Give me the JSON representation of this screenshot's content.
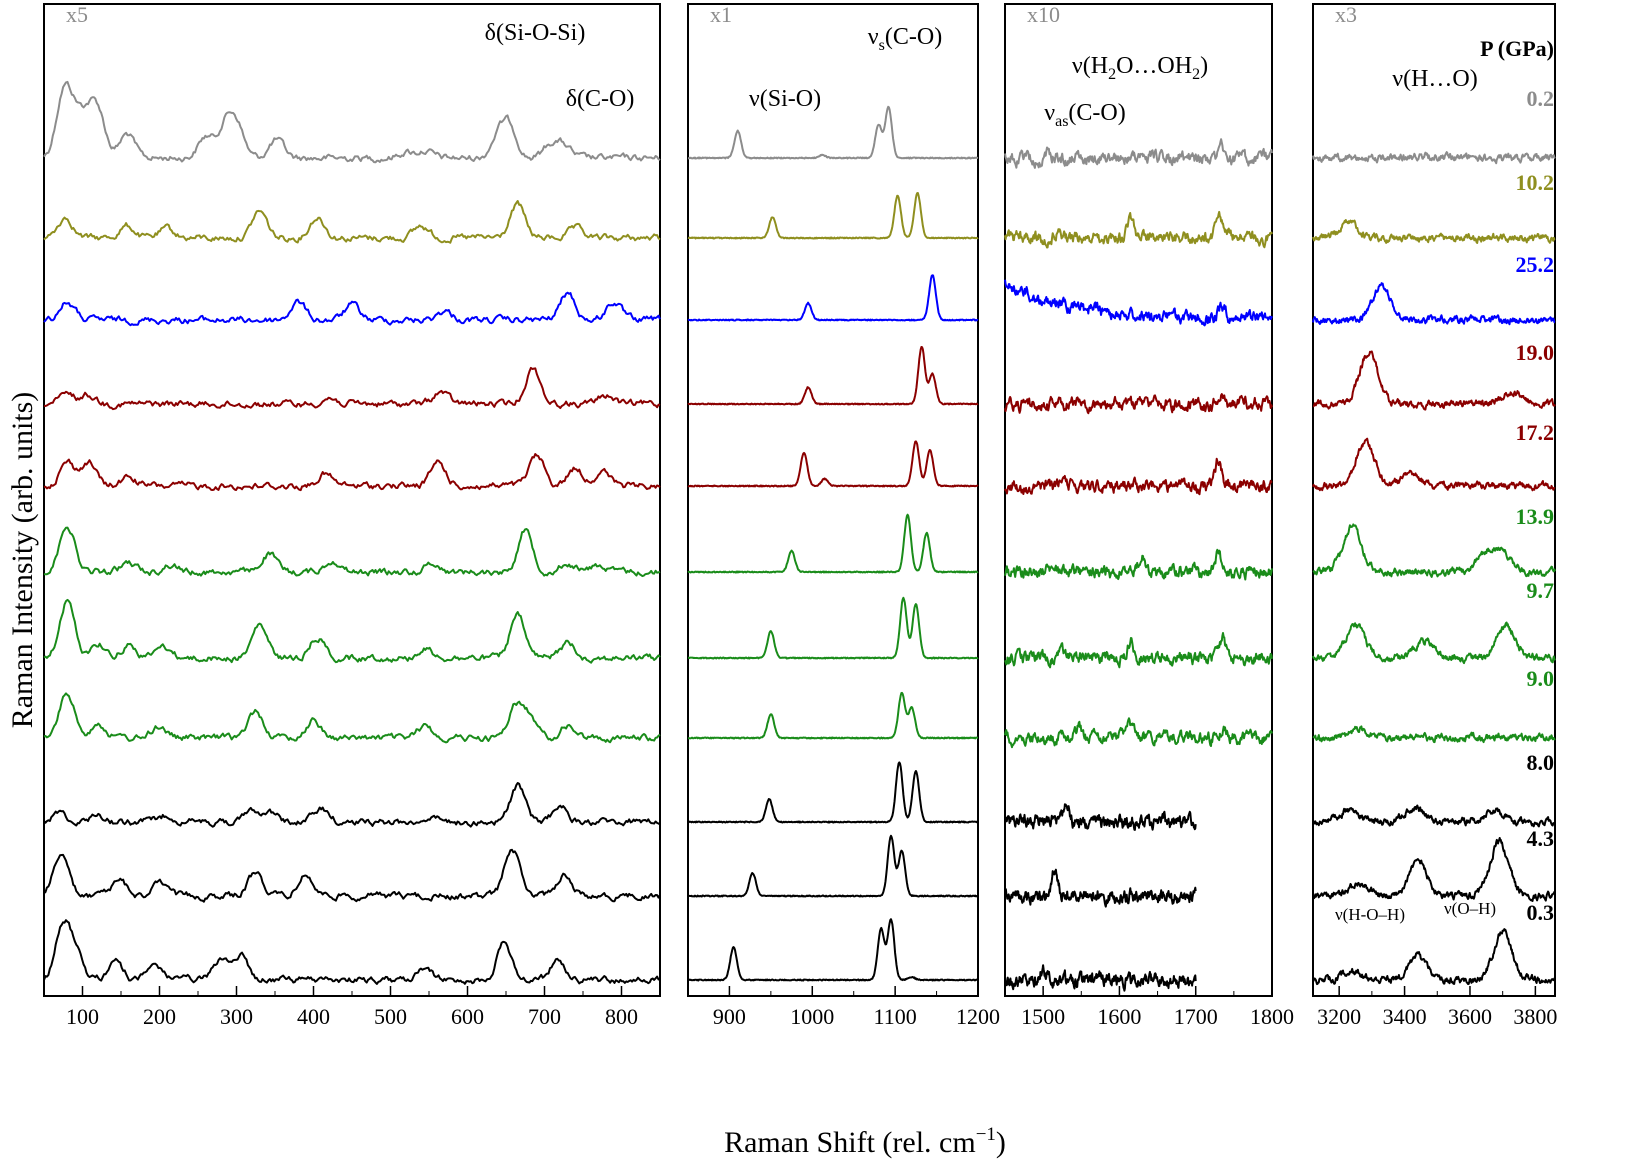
{
  "figure": {
    "xlabel": "Raman Shift (rel. cm",
    "xlabel_sup": "−1",
    "xlabel_end": ")",
    "ylabel": "Raman Intensity (arb. units)",
    "legend_title": "P (GPa)"
  },
  "chart_data": {
    "type": "line",
    "title": "",
    "xlabel": "Raman Shift (rel. cm−1)",
    "ylabel": "Raman Intensity (arb. units)",
    "grid": false,
    "legend_title": "P (GPa)",
    "legend_placement": "right",
    "pressures_order_top_to_bottom": [
      "0.2",
      "10.2",
      "25.2",
      "19.0",
      "17.2",
      "13.9",
      "9.7",
      "9.0",
      "8.0",
      "4.3",
      "0.3"
    ],
    "series": [
      {
        "name": "0.2",
        "color": "#8c8c8c"
      },
      {
        "name": "10.2",
        "color": "#8f8f1f"
      },
      {
        "name": "25.2",
        "color": "#0000ff"
      },
      {
        "name": "19.0",
        "color": "#8b0000"
      },
      {
        "name": "17.2",
        "color": "#8b0000"
      },
      {
        "name": "13.9",
        "color": "#1a8c1a"
      },
      {
        "name": "9.7",
        "color": "#1a8c1a"
      },
      {
        "name": "9.0",
        "color": "#1a8c1a"
      },
      {
        "name": "8.0",
        "color": "#000000"
      },
      {
        "name": "4.3",
        "color": "#000000"
      },
      {
        "name": "0.3",
        "color": "#000000"
      }
    ],
    "panels": [
      {
        "id": "p1",
        "scale_label": "x5",
        "xlim": [
          50,
          850
        ],
        "xticks": [
          100,
          200,
          300,
          400,
          500,
          600,
          700,
          800
        ],
        "annotations": [
          {
            "text": "δ(Si-O-Si)",
            "x": 535
          },
          {
            "text": "δ(C-O)",
            "x": 735
          }
        ],
        "series_peaks": [
          [
            [
              75,
              1.0
            ],
            [
              88,
              0.45
            ],
            [
              100,
              0.4
            ],
            [
              112,
              0.45
            ],
            [
              122,
              0.55
            ],
            [
              158,
              0.4
            ],
            [
              260,
              0.35
            ],
            [
              285,
              0.5
            ],
            [
              300,
              0.55
            ],
            [
              352,
              0.3
            ],
            [
              520,
              0.1
            ],
            [
              545,
              0.12
            ],
            [
              640,
              0.35
            ],
            [
              655,
              0.5
            ],
            [
              708,
              0.22
            ],
            [
              725,
              0.2
            ]
          ],
          [
            [
              78,
              0.35
            ],
            [
              158,
              0.2
            ],
            [
              210,
              0.15
            ],
            [
              330,
              0.45
            ],
            [
              405,
              0.35
            ],
            [
              540,
              0.2
            ],
            [
              665,
              0.55
            ],
            [
              740,
              0.15
            ]
          ],
          [
            [
              80,
              0.3
            ],
            [
              380,
              0.3
            ],
            [
              450,
              0.25
            ],
            [
              570,
              0.15
            ],
            [
              730,
              0.45
            ],
            [
              790,
              0.3
            ]
          ],
          [
            [
              80,
              0.15
            ],
            [
              108,
              0.15
            ],
            [
              420,
              0.1
            ],
            [
              565,
              0.2
            ],
            [
              685,
              0.6
            ],
            [
              780,
              0.15
            ]
          ],
          [
            [
              80,
              0.4
            ],
            [
              108,
              0.4
            ],
            [
              160,
              0.15
            ],
            [
              415,
              0.2
            ],
            [
              562,
              0.4
            ],
            [
              690,
              0.5
            ],
            [
              740,
              0.3
            ],
            [
              775,
              0.25
            ]
          ],
          [
            [
              80,
              0.8
            ],
            [
              160,
              0.15
            ],
            [
              215,
              0.12
            ],
            [
              342,
              0.3
            ],
            [
              425,
              0.2
            ],
            [
              555,
              0.15
            ],
            [
              675,
              0.7
            ],
            [
              730,
              0.15
            ],
            [
              770,
              0.12
            ]
          ],
          [
            [
              80,
              0.95
            ],
            [
              120,
              0.25
            ],
            [
              160,
              0.22
            ],
            [
              205,
              0.2
            ],
            [
              330,
              0.55
            ],
            [
              405,
              0.35
            ],
            [
              545,
              0.15
            ],
            [
              665,
              0.7
            ],
            [
              730,
              0.25
            ]
          ],
          [
            [
              80,
              0.75
            ],
            [
              120,
              0.25
            ],
            [
              200,
              0.2
            ],
            [
              325,
              0.45
            ],
            [
              400,
              0.3
            ],
            [
              545,
              0.2
            ],
            [
              662,
              0.5
            ],
            [
              680,
              0.35
            ],
            [
              730,
              0.2
            ]
          ],
          [
            [
              70,
              0.15
            ],
            [
              120,
              0.12
            ],
            [
              210,
              0.12
            ],
            [
              322,
              0.2
            ],
            [
              345,
              0.15
            ],
            [
              410,
              0.22
            ],
            [
              550,
              0.08
            ],
            [
              665,
              0.6
            ],
            [
              720,
              0.25
            ]
          ],
          [
            [
              72,
              0.7
            ],
            [
              148,
              0.25
            ],
            [
              200,
              0.2
            ],
            [
              325,
              0.4
            ],
            [
              390,
              0.35
            ],
            [
              658,
              0.8
            ],
            [
              725,
              0.35
            ]
          ],
          [
            [
              75,
              0.9
            ],
            [
              92,
              0.4
            ],
            [
              142,
              0.3
            ],
            [
              195,
              0.25
            ],
            [
              280,
              0.35
            ],
            [
              305,
              0.4
            ],
            [
              545,
              0.18
            ],
            [
              648,
              0.6
            ],
            [
              718,
              0.35
            ]
          ]
        ]
      },
      {
        "id": "p2",
        "scale_label": "x1",
        "xlim": [
          850,
          1200
        ],
        "xticks": [
          900,
          1000,
          1100,
          1200
        ],
        "annotations": [
          {
            "text": "ν(Si-O)",
            "x": 965
          },
          {
            "text": "ν",
            "sub": "s",
            "rest": "(C-O)",
            "x": 1112
          }
        ],
        "series_peaks": [
          [
            [
              910,
              0.45
            ],
            [
              1012,
              0.05
            ],
            [
              1080,
              0.55
            ],
            [
              1092,
              0.85
            ]
          ],
          [
            [
              952,
              0.35
            ],
            [
              1103,
              0.7
            ],
            [
              1127,
              0.75
            ]
          ],
          [
            [
              995,
              0.28
            ],
            [
              1145,
              0.75
            ]
          ],
          [
            [
              995,
              0.28
            ],
            [
              1132,
              0.95
            ],
            [
              1145,
              0.5
            ]
          ],
          [
            [
              990,
              0.55
            ],
            [
              1015,
              0.12
            ],
            [
              1125,
              0.75
            ],
            [
              1142,
              0.6
            ]
          ],
          [
            [
              975,
              0.35
            ],
            [
              1115,
              0.95
            ],
            [
              1138,
              0.65
            ]
          ],
          [
            [
              950,
              0.45
            ],
            [
              1110,
              1.0
            ],
            [
              1125,
              0.9
            ]
          ],
          [
            [
              950,
              0.4
            ],
            [
              1108,
              0.75
            ],
            [
              1120,
              0.5
            ]
          ],
          [
            [
              948,
              0.38
            ],
            [
              1105,
              1.0
            ],
            [
              1125,
              0.85
            ]
          ],
          [
            [
              928,
              0.38
            ],
            [
              1095,
              1.0
            ],
            [
              1108,
              0.75
            ]
          ],
          [
            [
              905,
              0.55
            ],
            [
              1083,
              0.85
            ],
            [
              1095,
              1.0
            ],
            [
              1120,
              0.05
            ]
          ]
        ]
      },
      {
        "id": "p3",
        "scale_label": "x10",
        "xlim": [
          1450,
          1800
        ],
        "xticks": [
          1500,
          1600,
          1700,
          1800
        ],
        "annotations": [
          {
            "text": "ν(H",
            "sub1": "2",
            "mid": "O…OH",
            "sub2": "2",
            "rest": ")",
            "x": 1680
          },
          {
            "text": "ν",
            "sub": "as",
            "rest": "(C-O)",
            "x": 1540
          }
        ],
        "series_peaks": [
          [
            [
              1505,
              0.1
            ],
            [
              1735,
              0.15
            ]
          ],
          [
            [
              1520,
              0.12
            ],
            [
              1615,
              0.35
            ],
            [
              1730,
              0.4
            ]
          ],
          [
            [
              1735,
              0.2
            ]
          ],
          [
            [
              1735,
              0.15
            ]
          ],
          [
            [
              1730,
              0.45
            ]
          ],
          [
            [
              1630,
              0.25
            ],
            [
              1730,
              0.3
            ]
          ],
          [
            [
              1525,
              0.15
            ],
            [
              1615,
              0.3
            ],
            [
              1735,
              0.3
            ]
          ],
          [
            [
              1545,
              0.2
            ],
            [
              1615,
              0.2
            ],
            [
              1735,
              0.15
            ]
          ],
          [
            [
              1530,
              0.35
            ]
          ],
          [
            [
              1515,
              0.4
            ]
          ],
          [
            [
              1500,
              0.2
            ]
          ]
        ]
      },
      {
        "id": "p4",
        "scale_label": "x3",
        "xlim": [
          3120,
          3860
        ],
        "xticks": [
          3200,
          3400,
          3600,
          3800
        ],
        "annotations": [
          {
            "text": "ν(H…O)",
            "x": 3410
          },
          {
            "text": "ν(H-O–H)",
            "x": 3330
          },
          {
            "text": "ν(O–H)",
            "x": 3560
          }
        ],
        "series_peaks": [
          [
            [
              3450,
              0.05
            ]
          ],
          [
            [
              3230,
              0.25
            ]
          ],
          [
            [
              3330,
              0.55
            ]
          ],
          [
            [
              3290,
              0.85
            ],
            [
              3730,
              0.2
            ]
          ],
          [
            [
              3280,
              0.75
            ],
            [
              3420,
              0.2
            ]
          ],
          [
            [
              3240,
              0.75
            ],
            [
              3650,
              0.3
            ],
            [
              3700,
              0.3
            ]
          ],
          [
            [
              3250,
              0.55
            ],
            [
              3460,
              0.3
            ],
            [
              3710,
              0.55
            ]
          ],
          [
            [
              3260,
              0.15
            ]
          ],
          [
            [
              3230,
              0.2
            ],
            [
              3430,
              0.25
            ],
            [
              3680,
              0.2
            ]
          ],
          [
            [
              3260,
              0.2
            ],
            [
              3440,
              0.6
            ],
            [
              3690,
              0.9
            ]
          ],
          [
            [
              3240,
              0.15
            ],
            [
              3440,
              0.4
            ],
            [
              3700,
              0.8
            ]
          ]
        ]
      }
    ]
  }
}
